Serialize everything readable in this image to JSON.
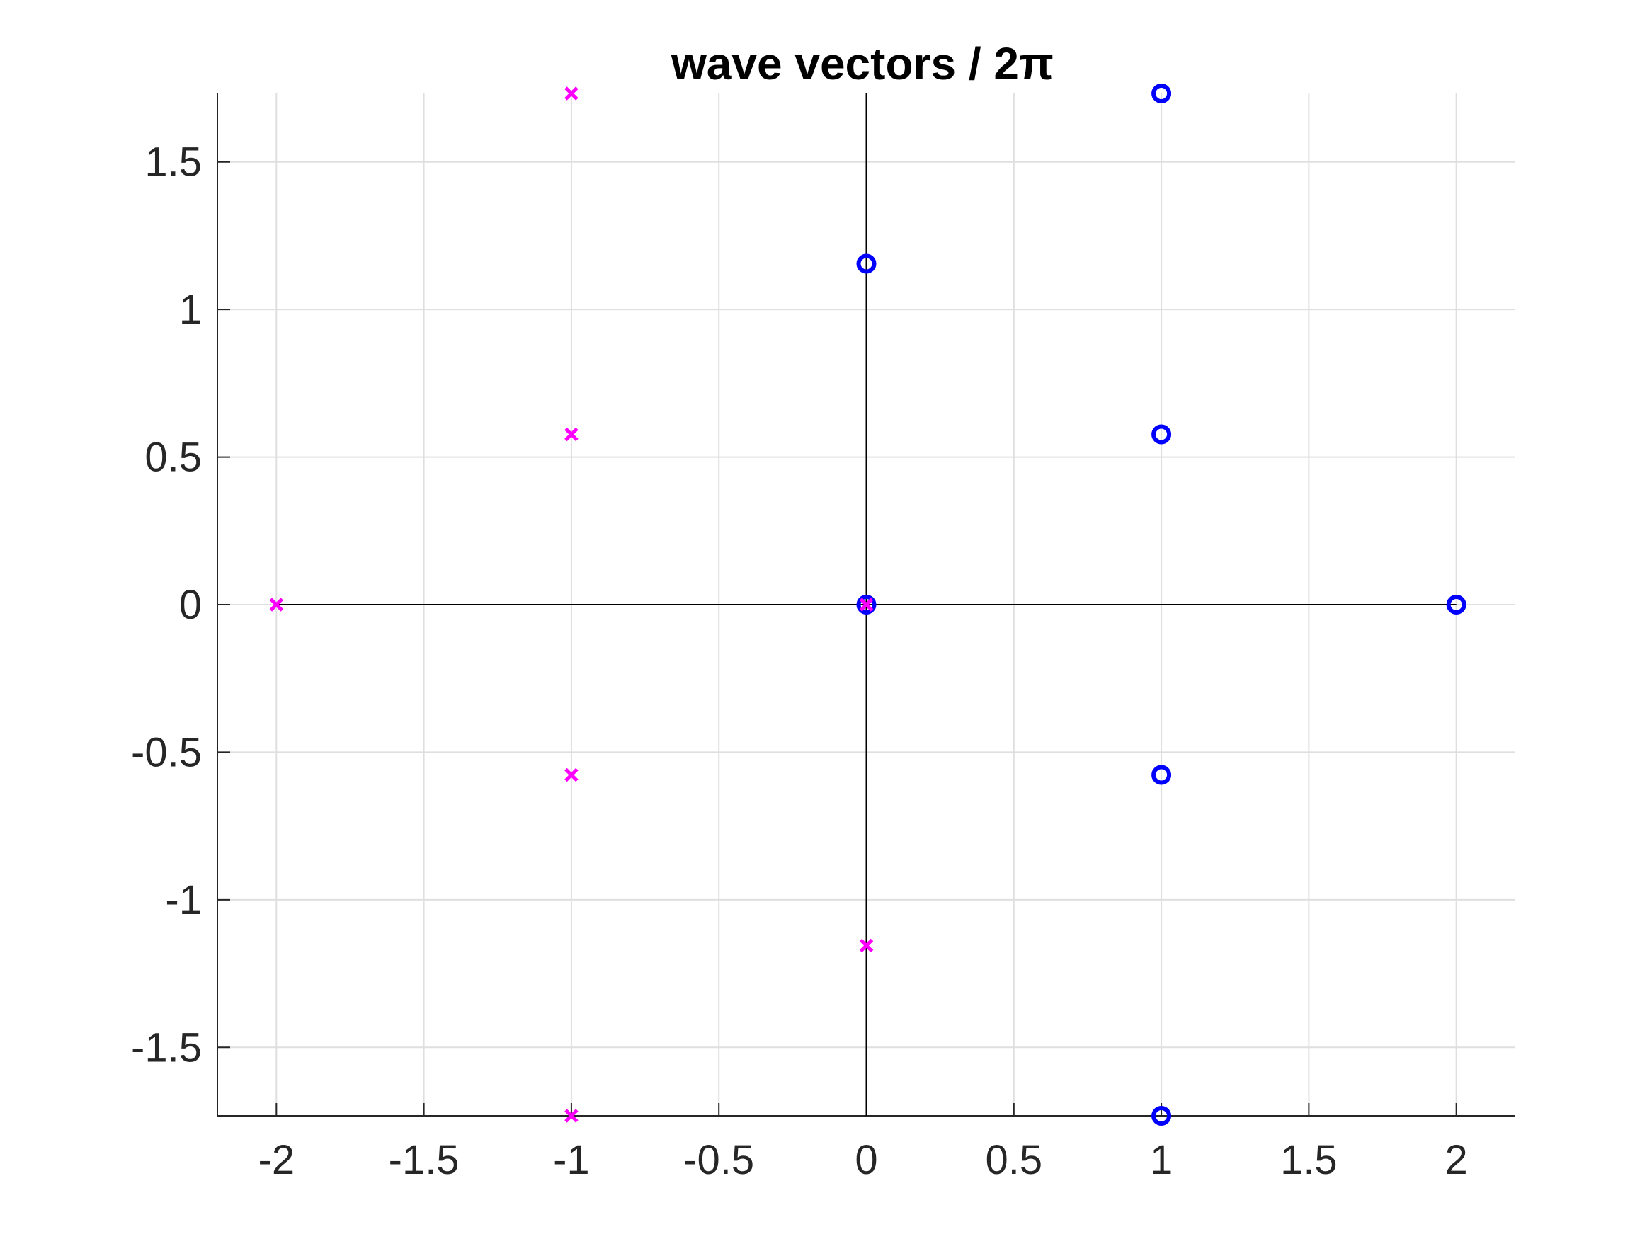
{
  "chart_data": {
    "type": "scatter",
    "title": "wave vectors / 2π",
    "xlabel": "",
    "ylabel": "",
    "xlim": [
      -2.2,
      2.2
    ],
    "ylim": [
      -1.732,
      1.732
    ],
    "x_ticks": [
      -2,
      -1.5,
      -1,
      -0.5,
      0,
      0.5,
      1,
      1.5,
      2
    ],
    "x_tick_labels": [
      "-2",
      "-1.5",
      "-1",
      "-0.5",
      "0",
      "0.5",
      "1",
      "1.5",
      "2"
    ],
    "y_ticks": [
      -1.5,
      -1,
      -0.5,
      0,
      0.5,
      1,
      1.5
    ],
    "y_tick_labels": [
      "-1.5",
      "-1",
      "-0.5",
      "0",
      "0.5",
      "1",
      "1.5"
    ],
    "grid": true,
    "axis_lines_through_origin": true,
    "series": [
      {
        "marker": "circle",
        "color": "#0000ff",
        "points": [
          [
            0,
            0
          ],
          [
            0,
            1.155
          ],
          [
            1,
            1.732
          ],
          [
            1,
            0.577
          ],
          [
            2,
            0
          ],
          [
            1,
            -0.577
          ],
          [
            1,
            -1.732
          ]
        ]
      },
      {
        "marker": "cross",
        "color": "#ff00ff",
        "points": [
          [
            0,
            0
          ],
          [
            -1,
            1.732
          ],
          [
            -1,
            0.577
          ],
          [
            -2,
            0
          ],
          [
            -1,
            -0.577
          ],
          [
            0,
            -1.155
          ],
          [
            -1,
            -1.732
          ]
        ]
      }
    ]
  }
}
